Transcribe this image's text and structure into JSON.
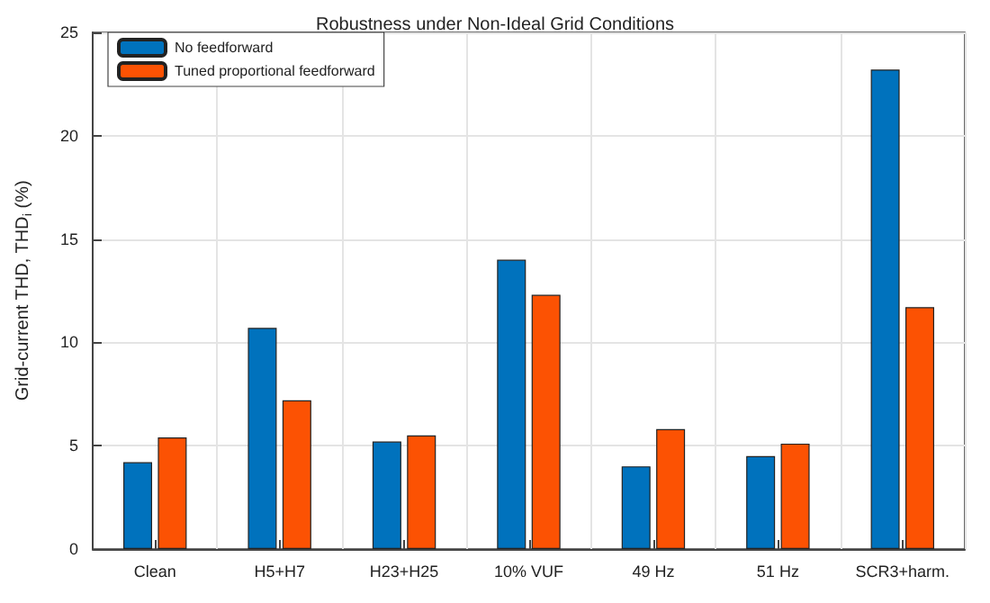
{
  "chart_data": {
    "type": "bar",
    "title": "Robustness under Non-Ideal Grid Conditions",
    "ylabel": "Grid-current THD, THD$_{i}$ (%)",
    "categories": [
      "Clean",
      "H5+H7",
      "H23+H25",
      "10% VUF",
      "49 Hz",
      "51 Hz",
      "SCR3+harm."
    ],
    "series": [
      {
        "name": "No feedforward",
        "color": "#0072bd",
        "values": [
          4.2,
          10.7,
          5.2,
          14.0,
          4.0,
          4.5,
          23.2
        ]
      },
      {
        "name": "Tuned proportional feedforward",
        "color": "#fc5203",
        "values": [
          5.4,
          7.2,
          5.5,
          12.3,
          5.8,
          5.1,
          11.7
        ]
      }
    ],
    "ylim": [
      0,
      25
    ],
    "yticks": [
      0,
      5,
      10,
      15,
      20,
      25
    ],
    "grid": true,
    "legend": "top left"
  }
}
